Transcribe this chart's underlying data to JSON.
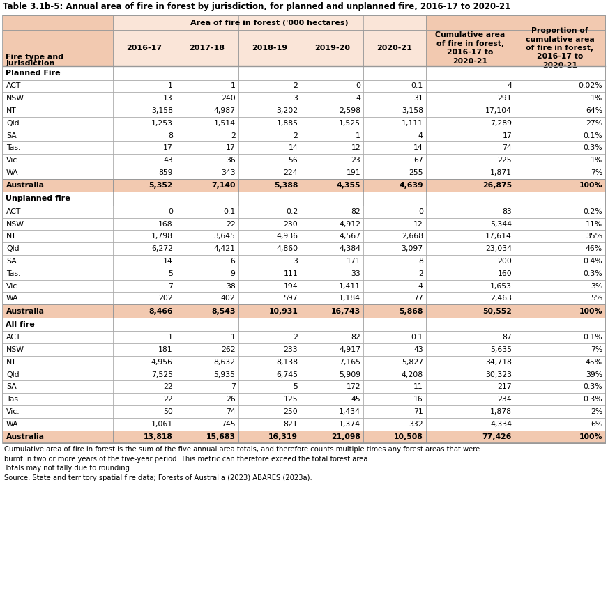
{
  "title": "Table 3.1b-5: Annual area of fire in forest by jurisdiction, for planned and unplanned fire, 2016-17 to 2020-21",
  "header_bg": "#F2C9B0",
  "header_bg_light": "#FAE5D8",
  "australia_row_bg": "#F2C9B0",
  "white_bg": "#FFFFFF",
  "col_headers_main": "Area of fire in forest ('000 hectares)",
  "col_headers_years": [
    "2016-17",
    "2017-18",
    "2018-19",
    "2019-20",
    "2020-21"
  ],
  "col_header_cumulative": "Cumulative area\nof fire in forest,\n2016-17 to\n2020-21",
  "col_header_proportion": "Proportion of\ncumulative area\nof fire in forest,\n2016-17 to\n2020-21",
  "col_header_left": "Fire type and\njurisdiction",
  "sections": [
    {
      "section_title": "Planned Fire",
      "rows": [
        {
          "label": "ACT",
          "values": [
            "1",
            "1",
            "2",
            "0",
            "0.1"
          ],
          "cumulative": "4",
          "proportion": "0.02%"
        },
        {
          "label": "NSW",
          "values": [
            "13",
            "240",
            "3",
            "4",
            "31"
          ],
          "cumulative": "291",
          "proportion": "1%"
        },
        {
          "label": "NT",
          "values": [
            "3,158",
            "4,987",
            "3,202",
            "2,598",
            "3,158"
          ],
          "cumulative": "17,104",
          "proportion": "64%"
        },
        {
          "label": "Qld",
          "values": [
            "1,253",
            "1,514",
            "1,885",
            "1,525",
            "1,111"
          ],
          "cumulative": "7,289",
          "proportion": "27%"
        },
        {
          "label": "SA",
          "values": [
            "8",
            "2",
            "2",
            "1",
            "4"
          ],
          "cumulative": "17",
          "proportion": "0.1%"
        },
        {
          "label": "Tas.",
          "values": [
            "17",
            "17",
            "14",
            "12",
            "14"
          ],
          "cumulative": "74",
          "proportion": "0.3%"
        },
        {
          "label": "Vic.",
          "values": [
            "43",
            "36",
            "56",
            "23",
            "67"
          ],
          "cumulative": "225",
          "proportion": "1%"
        },
        {
          "label": "WA",
          "values": [
            "859",
            "343",
            "224",
            "191",
            "255"
          ],
          "cumulative": "1,871",
          "proportion": "7%"
        }
      ],
      "total": {
        "label": "Australia",
        "values": [
          "5,352",
          "7,140",
          "5,388",
          "4,355",
          "4,639"
        ],
        "cumulative": "26,875",
        "proportion": "100%"
      }
    },
    {
      "section_title": "Unplanned fire",
      "rows": [
        {
          "label": "ACT",
          "values": [
            "0",
            "0.1",
            "0.2",
            "82",
            "0"
          ],
          "cumulative": "83",
          "proportion": "0.2%"
        },
        {
          "label": "NSW",
          "values": [
            "168",
            "22",
            "230",
            "4,912",
            "12"
          ],
          "cumulative": "5,344",
          "proportion": "11%"
        },
        {
          "label": "NT",
          "values": [
            "1,798",
            "3,645",
            "4,936",
            "4,567",
            "2,668"
          ],
          "cumulative": "17,614",
          "proportion": "35%"
        },
        {
          "label": "Qld",
          "values": [
            "6,272",
            "4,421",
            "4,860",
            "4,384",
            "3,097"
          ],
          "cumulative": "23,034",
          "proportion": "46%"
        },
        {
          "label": "SA",
          "values": [
            "14",
            "6",
            "3",
            "171",
            "8"
          ],
          "cumulative": "200",
          "proportion": "0.4%"
        },
        {
          "label": "Tas.",
          "values": [
            "5",
            "9",
            "111",
            "33",
            "2"
          ],
          "cumulative": "160",
          "proportion": "0.3%"
        },
        {
          "label": "Vic.",
          "values": [
            "7",
            "38",
            "194",
            "1,411",
            "4"
          ],
          "cumulative": "1,653",
          "proportion": "3%"
        },
        {
          "label": "WA",
          "values": [
            "202",
            "402",
            "597",
            "1,184",
            "77"
          ],
          "cumulative": "2,463",
          "proportion": "5%"
        }
      ],
      "total": {
        "label": "Australia",
        "values": [
          "8,466",
          "8,543",
          "10,931",
          "16,743",
          "5,868"
        ],
        "cumulative": "50,552",
        "proportion": "100%"
      }
    },
    {
      "section_title": "All fire",
      "rows": [
        {
          "label": "ACT",
          "values": [
            "1",
            "1",
            "2",
            "82",
            "0.1"
          ],
          "cumulative": "87",
          "proportion": "0.1%"
        },
        {
          "label": "NSW",
          "values": [
            "181",
            "262",
            "233",
            "4,917",
            "43"
          ],
          "cumulative": "5,635",
          "proportion": "7%"
        },
        {
          "label": "NT",
          "values": [
            "4,956",
            "8,632",
            "8,138",
            "7,165",
            "5,827"
          ],
          "cumulative": "34,718",
          "proportion": "45%"
        },
        {
          "label": "Qld",
          "values": [
            "7,525",
            "5,935",
            "6,745",
            "5,909",
            "4,208"
          ],
          "cumulative": "30,323",
          "proportion": "39%"
        },
        {
          "label": "SA",
          "values": [
            "22",
            "7",
            "5",
            "172",
            "11"
          ],
          "cumulative": "217",
          "proportion": "0.3%"
        },
        {
          "label": "Tas.",
          "values": [
            "22",
            "26",
            "125",
            "45",
            "16"
          ],
          "cumulative": "234",
          "proportion": "0.3%"
        },
        {
          "label": "Vic.",
          "values": [
            "50",
            "74",
            "250",
            "1,434",
            "71"
          ],
          "cumulative": "1,878",
          "proportion": "2%"
        },
        {
          "label": "WA",
          "values": [
            "1,061",
            "745",
            "821",
            "1,374",
            "332"
          ],
          "cumulative": "4,334",
          "proportion": "6%"
        }
      ],
      "total": {
        "label": "Australia",
        "values": [
          "13,818",
          "15,683",
          "16,319",
          "21,098",
          "10,508"
        ],
        "cumulative": "77,426",
        "proportion": "100%"
      }
    }
  ],
  "footnotes": [
    "Cumulative area of fire in forest is the sum of the five annual area totals, and therefore counts multiple times any forest areas that were",
    "burnt in two or more years of the five-year period. This metric can therefore exceed the total forest area.",
    "Totals may not tally due to rounding.",
    "Source: State and territory spatial fire data; Forests of Australia (2023) ABARES (2023a)."
  ],
  "border_color": "#999999",
  "grid_color": "#BBBBBB"
}
